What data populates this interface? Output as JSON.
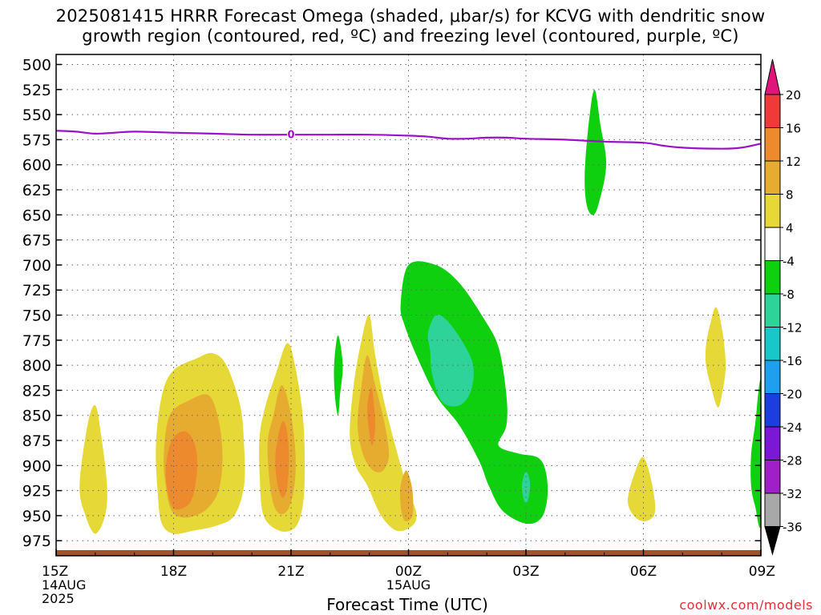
{
  "title_line1": "2025081415 HRRR Forecast Omega (shaded, μbar/s) for KCVG with dendritic snow",
  "title_line2": "growth region (contoured, red, ºC) and freezing level (contoured, purple, ºC)",
  "credit": "coolwx.com/models",
  "chart_data": {
    "type": "contour",
    "title": "2025081415 HRRR Forecast Omega (shaded, μbar/s) for KCVG with dendritic snow growth region (contoured, red, ºC) and freezing level (contoured, purple, ºC)",
    "xlabel": "Forecast Time (UTC)",
    "ylabel": "",
    "x_range_hours": [
      0,
      18
    ],
    "x_ticks": [
      {
        "h": 0,
        "label": "15Z",
        "sub": [
          "14AUG",
          "2025"
        ]
      },
      {
        "h": 3,
        "label": "18Z",
        "sub": []
      },
      {
        "h": 6,
        "label": "21Z",
        "sub": []
      },
      {
        "h": 9,
        "label": "00Z",
        "sub": [
          "15AUG"
        ]
      },
      {
        "h": 12,
        "label": "03Z",
        "sub": []
      },
      {
        "h": 15,
        "label": "06Z",
        "sub": []
      },
      {
        "h": 18,
        "label": "09Z",
        "sub": []
      }
    ],
    "y_scale": "pressure (hPa), inverted",
    "y_range": [
      490,
      990
    ],
    "y_ticks": [
      500,
      525,
      550,
      575,
      600,
      625,
      650,
      675,
      700,
      725,
      750,
      775,
      800,
      825,
      850,
      875,
      900,
      925,
      950,
      975
    ],
    "grid": true,
    "colorbar": {
      "labels": [
        "20",
        "16",
        "12",
        "8",
        "4",
        "-4",
        "-8",
        "-12",
        "-16",
        "-20",
        "-24",
        "-28",
        "-32",
        "-36"
      ],
      "bins": [
        {
          "range": ">20",
          "color": "#e0157a"
        },
        {
          "range": "16-20",
          "color": "#f03a3a"
        },
        {
          "range": "12-16",
          "color": "#ee8a2e"
        },
        {
          "range": "8-12",
          "color": "#e6ac30"
        },
        {
          "range": "4-8",
          "color": "#e6d837"
        },
        {
          "range": "-4-4",
          "color": "#ffffff"
        },
        {
          "range": "-8--4",
          "color": "#0fd00f"
        },
        {
          "range": "-12--8",
          "color": "#2ed39a"
        },
        {
          "range": "-16--12",
          "color": "#18c8c8"
        },
        {
          "range": "-20--16",
          "color": "#1ea0ee"
        },
        {
          "range": "-24--20",
          "color": "#1c3ee0"
        },
        {
          "range": "-28--24",
          "color": "#7a18d6"
        },
        {
          "range": "-32--28",
          "color": "#a020c8"
        },
        {
          "range": "-36--32",
          "color": "#a8a8a8"
        },
        {
          "range": "<-36",
          "color": "#000000"
        }
      ]
    },
    "freezing_level": {
      "color": "#9b10c8",
      "contour_label": "0",
      "points": [
        [
          0,
          566
        ],
        [
          0.5,
          567
        ],
        [
          1,
          569
        ],
        [
          1.5,
          568
        ],
        [
          2,
          567
        ],
        [
          3,
          568
        ],
        [
          4,
          569
        ],
        [
          5,
          570
        ],
        [
          6,
          570
        ],
        [
          7,
          570
        ],
        [
          8,
          570
        ],
        [
          9,
          571
        ],
        [
          9.5,
          572
        ],
        [
          10,
          574
        ],
        [
          10.5,
          574
        ],
        [
          11,
          573
        ],
        [
          11.5,
          573
        ],
        [
          12,
          574
        ],
        [
          13,
          575
        ],
        [
          14,
          577
        ],
        [
          15,
          578
        ],
        [
          15.5,
          581
        ],
        [
          16,
          583
        ],
        [
          17,
          584
        ],
        [
          17.5,
          583
        ],
        [
          18,
          579
        ]
      ]
    },
    "omega_regions": [
      {
        "level": "4-8",
        "points": [
          [
            0.6,
            920
          ],
          [
            0.8,
            860
          ],
          [
            1.0,
            840
          ],
          [
            1.15,
            870
          ],
          [
            1.3,
            920
          ],
          [
            1.25,
            950
          ],
          [
            1.0,
            968
          ],
          [
            0.75,
            950
          ]
        ]
      },
      {
        "level": "4-8",
        "points": [
          [
            2.55,
            880
          ],
          [
            2.7,
            830
          ],
          [
            3.0,
            805
          ],
          [
            3.6,
            793
          ],
          [
            4.0,
            788
          ],
          [
            4.35,
            800
          ],
          [
            4.7,
            840
          ],
          [
            4.8,
            880
          ],
          [
            4.8,
            920
          ],
          [
            4.55,
            950
          ],
          [
            4.1,
            960
          ],
          [
            3.5,
            965
          ],
          [
            3.0,
            968
          ],
          [
            2.7,
            958
          ],
          [
            2.6,
            930
          ]
        ]
      },
      {
        "level": "8-12",
        "points": [
          [
            2.75,
            890
          ],
          [
            2.9,
            850
          ],
          [
            3.4,
            835
          ],
          [
            3.9,
            830
          ],
          [
            4.15,
            855
          ],
          [
            4.25,
            890
          ],
          [
            4.15,
            925
          ],
          [
            3.8,
            945
          ],
          [
            3.3,
            952
          ],
          [
            2.95,
            945
          ],
          [
            2.8,
            920
          ]
        ]
      },
      {
        "level": "12-16",
        "points": [
          [
            2.8,
            905
          ],
          [
            2.95,
            875
          ],
          [
            3.3,
            866
          ],
          [
            3.55,
            880
          ],
          [
            3.6,
            905
          ],
          [
            3.45,
            935
          ],
          [
            3.1,
            944
          ],
          [
            2.9,
            935
          ]
        ]
      },
      {
        "level": "4-8",
        "points": [
          [
            5.2,
            870
          ],
          [
            5.35,
            840
          ],
          [
            5.6,
            810
          ],
          [
            5.9,
            778
          ],
          [
            6.1,
            800
          ],
          [
            6.3,
            850
          ],
          [
            6.35,
            900
          ],
          [
            6.3,
            940
          ],
          [
            6.1,
            962
          ],
          [
            5.7,
            965
          ],
          [
            5.3,
            950
          ],
          [
            5.2,
            910
          ]
        ]
      },
      {
        "level": "8-12",
        "points": [
          [
            5.4,
            880
          ],
          [
            5.55,
            850
          ],
          [
            5.75,
            820
          ],
          [
            5.95,
            840
          ],
          [
            6.1,
            880
          ],
          [
            6.1,
            915
          ],
          [
            5.95,
            942
          ],
          [
            5.7,
            948
          ],
          [
            5.5,
            930
          ]
        ]
      },
      {
        "level": "12-16",
        "points": [
          [
            5.6,
            890
          ],
          [
            5.75,
            858
          ],
          [
            5.88,
            862
          ],
          [
            5.95,
            890
          ],
          [
            5.9,
            922
          ],
          [
            5.78,
            932
          ],
          [
            5.65,
            918
          ]
        ]
      },
      {
        "level": "-8--4",
        "points": [
          [
            7.1,
            800
          ],
          [
            7.2,
            770
          ],
          [
            7.32,
            800
          ],
          [
            7.25,
            830
          ],
          [
            7.2,
            850
          ],
          [
            7.12,
            830
          ]
        ]
      },
      {
        "level": "4-8",
        "points": [
          [
            7.5,
            870
          ],
          [
            7.6,
            820
          ],
          [
            7.8,
            775
          ],
          [
            8.0,
            750
          ],
          [
            8.15,
            790
          ],
          [
            8.4,
            840
          ],
          [
            8.8,
            900
          ],
          [
            9.0,
            925
          ],
          [
            9.2,
            948
          ],
          [
            9.1,
            960
          ],
          [
            8.7,
            965
          ],
          [
            8.3,
            950
          ],
          [
            7.95,
            920
          ],
          [
            7.65,
            900
          ]
        ]
      },
      {
        "level": "8-12",
        "points": [
          [
            7.7,
            860
          ],
          [
            7.8,
            820
          ],
          [
            7.95,
            790
          ],
          [
            8.15,
            820
          ],
          [
            8.4,
            860
          ],
          [
            8.5,
            890
          ],
          [
            8.35,
            905
          ],
          [
            8.1,
            905
          ],
          [
            7.85,
            890
          ]
        ]
      },
      {
        "level": "12-16",
        "points": [
          [
            7.95,
            840
          ],
          [
            8.05,
            822
          ],
          [
            8.12,
            840
          ],
          [
            8.15,
            862
          ],
          [
            8.07,
            880
          ],
          [
            7.98,
            862
          ]
        ]
      },
      {
        "level": "8-12",
        "points": [
          [
            8.8,
            920
          ],
          [
            8.95,
            905
          ],
          [
            9.1,
            925
          ],
          [
            9.1,
            950
          ],
          [
            8.9,
            955
          ],
          [
            8.8,
            940
          ]
        ]
      },
      {
        "level": "-8--4",
        "points": [
          [
            8.8,
            740
          ],
          [
            9.0,
            700
          ],
          [
            9.7,
            700
          ],
          [
            10.3,
            718
          ],
          [
            10.9,
            752
          ],
          [
            11.3,
            782
          ],
          [
            11.5,
            830
          ],
          [
            11.5,
            860
          ],
          [
            11.3,
            880
          ],
          [
            11.8,
            888
          ],
          [
            12.3,
            892
          ],
          [
            12.5,
            905
          ],
          [
            12.55,
            930
          ],
          [
            12.4,
            952
          ],
          [
            12.0,
            958
          ],
          [
            11.4,
            945
          ],
          [
            11.05,
            920
          ],
          [
            10.8,
            895
          ],
          [
            10.3,
            860
          ],
          [
            9.7,
            830
          ],
          [
            9.2,
            790
          ],
          [
            8.9,
            760
          ]
        ]
      },
      {
        "level": "-12--8",
        "points": [
          [
            9.5,
            768
          ],
          [
            9.7,
            750
          ],
          [
            10.0,
            756
          ],
          [
            10.4,
            778
          ],
          [
            10.65,
            800
          ],
          [
            10.6,
            825
          ],
          [
            10.3,
            840
          ],
          [
            9.85,
            836
          ],
          [
            9.6,
            808
          ],
          [
            9.55,
            785
          ]
        ]
      },
      {
        "level": "-12--8",
        "points": [
          [
            11.9,
            918
          ],
          [
            12.0,
            906
          ],
          [
            12.1,
            916
          ],
          [
            12.08,
            930
          ],
          [
            12.0,
            938
          ],
          [
            11.92,
            930
          ]
        ]
      },
      {
        "level": "-8--4",
        "points": [
          [
            13.5,
            610
          ],
          [
            13.6,
            560
          ],
          [
            13.75,
            525
          ],
          [
            13.9,
            560
          ],
          [
            14.05,
            600
          ],
          [
            13.85,
            640
          ],
          [
            13.7,
            650
          ],
          [
            13.55,
            640
          ]
        ]
      },
      {
        "level": "4-8",
        "points": [
          [
            14.6,
            935
          ],
          [
            14.8,
            905
          ],
          [
            15.0,
            892
          ],
          [
            15.2,
            915
          ],
          [
            15.3,
            945
          ],
          [
            15.1,
            955
          ],
          [
            14.8,
            952
          ]
        ]
      },
      {
        "level": "4-8",
        "points": [
          [
            16.6,
            780
          ],
          [
            16.7,
            760
          ],
          [
            16.85,
            742
          ],
          [
            17.0,
            762
          ],
          [
            17.1,
            800
          ],
          [
            17.0,
            830
          ],
          [
            16.9,
            842
          ],
          [
            16.75,
            825
          ],
          [
            16.6,
            800
          ]
        ]
      },
      {
        "level": "-8--4",
        "points": [
          [
            17.75,
            890
          ],
          [
            17.85,
            860
          ],
          [
            18.0,
            818
          ],
          [
            18.0,
            955
          ],
          [
            17.85,
            940
          ],
          [
            17.75,
            920
          ]
        ]
      }
    ],
    "surface_ground": {
      "color": "#a0522d",
      "label": ""
    }
  }
}
